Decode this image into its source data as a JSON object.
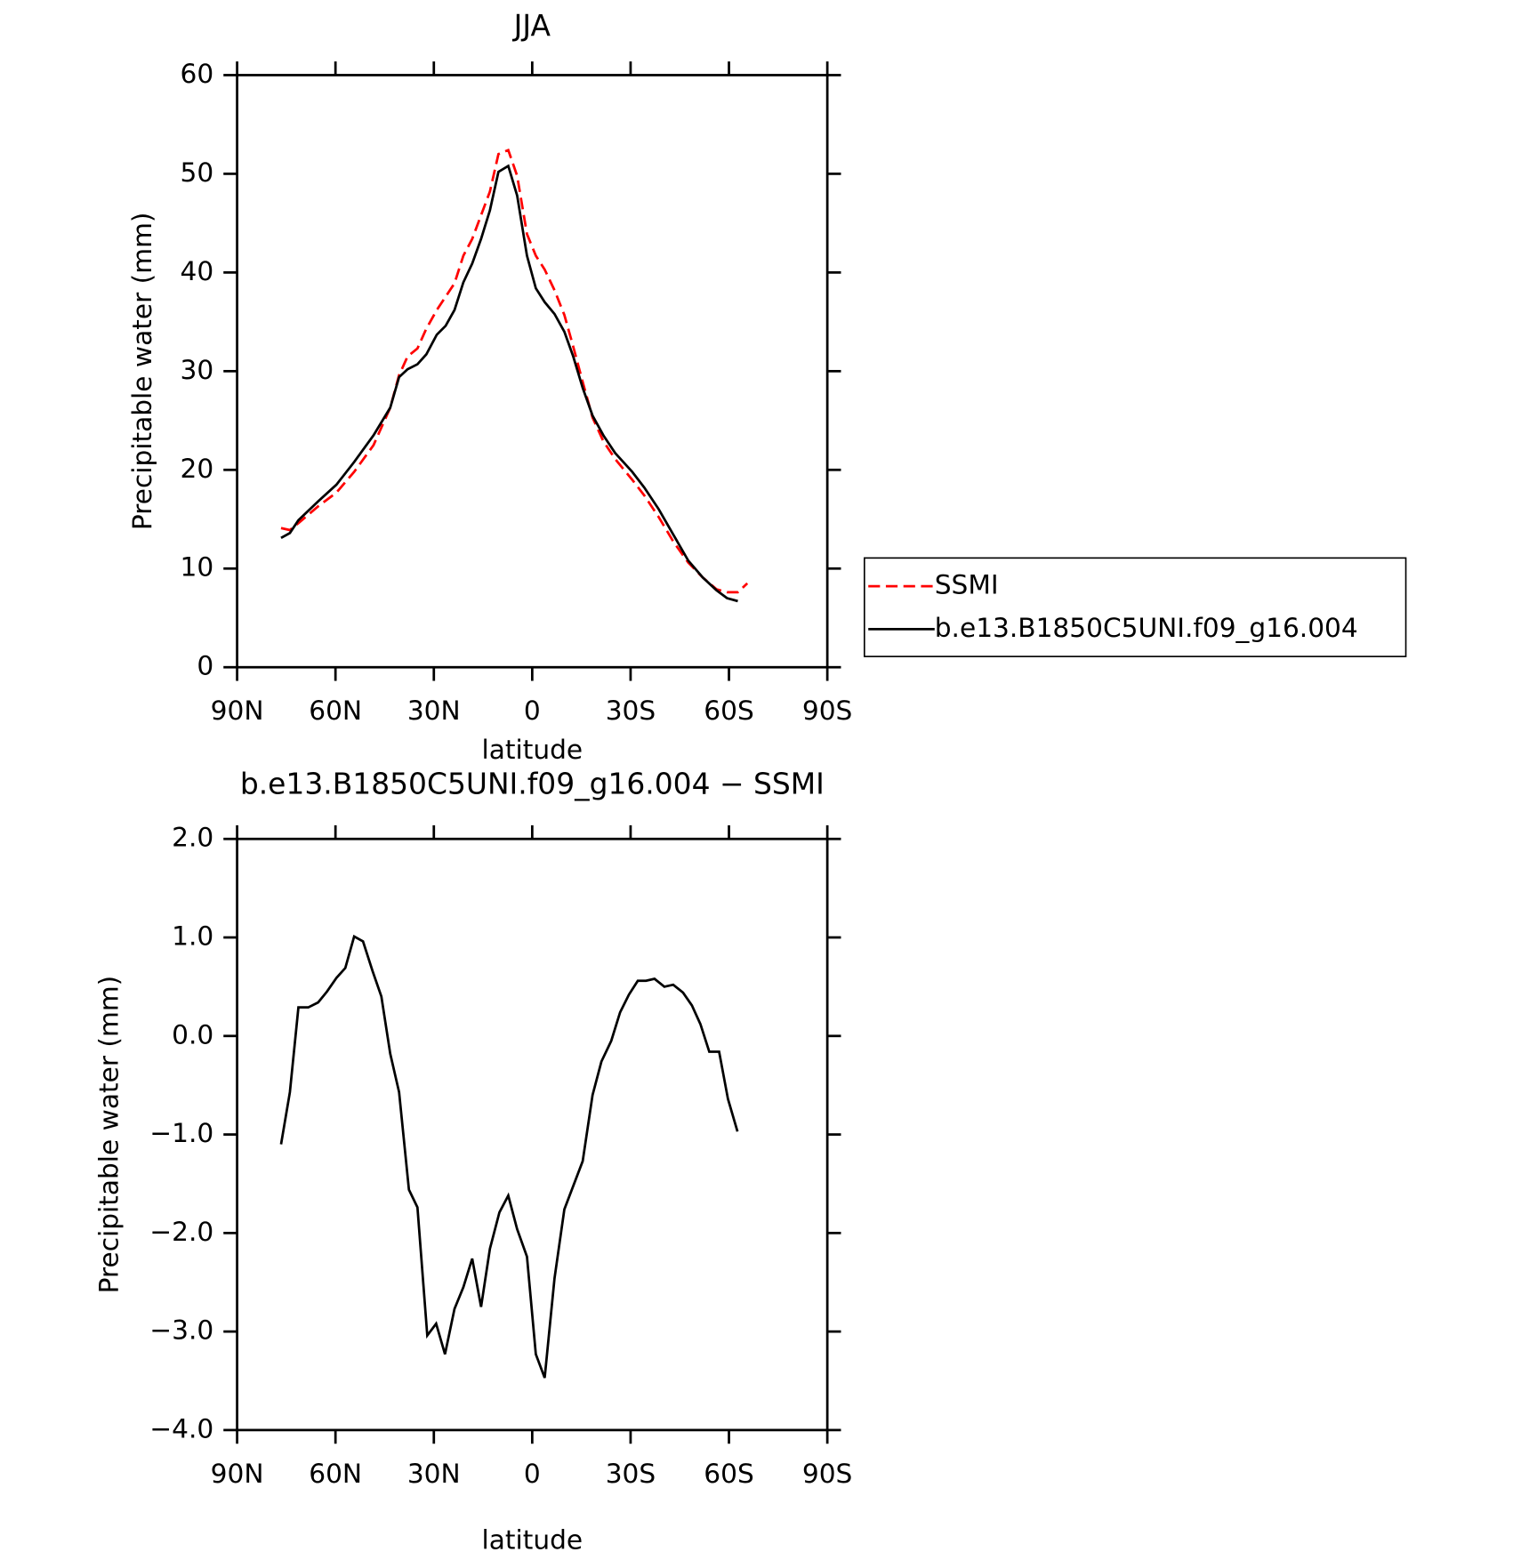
{
  "chart_data": [
    {
      "type": "line",
      "title": "JJA",
      "xlabel": "latitude",
      "ylabel": "Precipitable water (mm)",
      "xlim": [
        90,
        -90
      ],
      "xticks": [
        {
          "value": 90,
          "label": "90N"
        },
        {
          "value": 60,
          "label": "60N"
        },
        {
          "value": 30,
          "label": "30N"
        },
        0,
        {
          "value": -30,
          "label": "30S"
        },
        {
          "value": -60,
          "label": "60S"
        },
        {
          "value": -90,
          "label": "90S"
        }
      ],
      "ylim": [
        0,
        60
      ],
      "yticks": [
        0,
        10,
        20,
        30,
        40,
        50,
        60
      ],
      "legend": "right",
      "series": [
        {
          "name": "SSMI",
          "color": "#ff0000",
          "linestyle": "dashed",
          "x": [
            76.6,
            73.9,
            71.3,
            65.3,
            59.7,
            54.3,
            48.4,
            43.3,
            40.6,
            38.0,
            35.0,
            32.3,
            29.1,
            23.7,
            21.0,
            18.3,
            15.6,
            12.9,
            10.3,
            7.3,
            4.6,
            1.6,
            -1.1,
            -3.8,
            -6.8,
            -9.8,
            -12.5,
            -15.4,
            -18.4,
            -21.7,
            -25.3,
            -30.5,
            -34.2,
            -38.6,
            -43.1,
            -47.6,
            -52.0,
            -56.2,
            -59.4,
            -62.7,
            -65.6
          ],
          "values": [
            14.1,
            13.9,
            14.6,
            16.3,
            17.7,
            19.8,
            22.5,
            26.3,
            29.6,
            31.5,
            32.3,
            34.3,
            36.2,
            38.9,
            41.7,
            43.4,
            45.8,
            48.2,
            52.0,
            52.4,
            49.8,
            43.9,
            41.7,
            40.3,
            38.2,
            35.7,
            32.5,
            28.9,
            25.3,
            22.9,
            21.1,
            19.0,
            17.4,
            15.2,
            12.7,
            10.6,
            9.1,
            7.9,
            7.6,
            7.6,
            8.5
          ]
        },
        {
          "name": "b.e13.B1850C5UNI.f09_g16.004",
          "color": "#000000",
          "linestyle": "solid",
          "x": [
            76.6,
            73.9,
            71.3,
            65.3,
            59.7,
            54.3,
            48.4,
            43.3,
            40.6,
            38.0,
            35.0,
            32.3,
            29.1,
            26.4,
            23.7,
            21.0,
            18.3,
            15.6,
            12.9,
            10.3,
            7.3,
            4.6,
            1.6,
            -1.1,
            -3.8,
            -6.8,
            -9.8,
            -12.5,
            -15.4,
            -18.4,
            -21.7,
            -25.3,
            -30.5,
            -34.2,
            -38.6,
            -43.1,
            -47.6,
            -52.0,
            -56.2,
            -59.4,
            -62.7
          ],
          "values": [
            13.1,
            13.6,
            14.9,
            16.8,
            18.5,
            20.8,
            23.5,
            26.3,
            29.4,
            30.2,
            30.7,
            31.7,
            33.7,
            34.6,
            36.2,
            39.0,
            40.9,
            43.4,
            46.3,
            50.2,
            50.8,
            47.8,
            41.7,
            38.4,
            37.0,
            35.8,
            34.0,
            31.5,
            28.3,
            25.5,
            23.5,
            21.7,
            19.8,
            18.2,
            16.0,
            13.4,
            10.8,
            9.1,
            7.8,
            7.0,
            6.7
          ]
        }
      ]
    },
    {
      "type": "line",
      "title": "b.e13.B1850C5UNI.f09_g16.004 − SSMI",
      "xlabel": "latitude",
      "ylabel": "Precipitable water (mm)",
      "xlim": [
        90,
        -90
      ],
      "xticks": [
        {
          "value": 90,
          "label": "90N"
        },
        {
          "value": 60,
          "label": "60N"
        },
        {
          "value": 30,
          "label": "30N"
        },
        0,
        {
          "value": -30,
          "label": "30S"
        },
        {
          "value": -60,
          "label": "60S"
        },
        {
          "value": -90,
          "label": "90S"
        }
      ],
      "ylim": [
        -4,
        2
      ],
      "yticks": [
        {
          "value": -4,
          "label": "−4.0"
        },
        {
          "value": -3,
          "label": "−3.0"
        },
        {
          "value": -2,
          "label": "−2.0"
        },
        {
          "value": -1,
          "label": "−1.0"
        },
        {
          "value": 0,
          "label": "0.0"
        },
        {
          "value": 1,
          "label": "1.0"
        },
        {
          "value": 2,
          "label": "2.0"
        }
      ],
      "series": [
        {
          "color": "#000000",
          "linestyle": "solid",
          "x": [
            76.6,
            73.9,
            71.3,
            68.3,
            65.3,
            62.6,
            59.7,
            57.0,
            54.3,
            51.6,
            48.7,
            46.0,
            43.3,
            40.6,
            37.6,
            35.0,
            32.0,
            29.3,
            26.6,
            23.7,
            21.0,
            18.3,
            15.6,
            12.9,
            10.0,
            7.3,
            4.6,
            1.6,
            -1.1,
            -3.8,
            -6.8,
            -9.8,
            -15.4,
            -18.4,
            -21.1,
            -24.1,
            -26.8,
            -29.5,
            -32.2,
            -34.7,
            -37.3,
            -40.3,
            -43.0,
            -46.0,
            -48.7,
            -51.3,
            -54.0,
            -57.0,
            -59.7,
            -62.6
          ],
          "values": [
            -1.1,
            -0.57,
            0.29,
            0.29,
            0.34,
            0.45,
            0.59,
            0.69,
            1.01,
            0.96,
            0.66,
            0.4,
            -0.18,
            -0.57,
            -1.56,
            -1.74,
            -3.04,
            -2.92,
            -3.23,
            -2.77,
            -2.55,
            -2.26,
            -2.75,
            -2.16,
            -1.79,
            -1.62,
            -1.96,
            -2.24,
            -3.23,
            -3.47,
            -2.46,
            -1.76,
            -1.27,
            -0.6,
            -0.26,
            -0.05,
            0.24,
            0.42,
            0.56,
            0.56,
            0.58,
            0.5,
            0.52,
            0.44,
            0.31,
            0.12,
            -0.16,
            -0.16,
            -0.64,
            -0.97
          ]
        }
      ]
    }
  ]
}
